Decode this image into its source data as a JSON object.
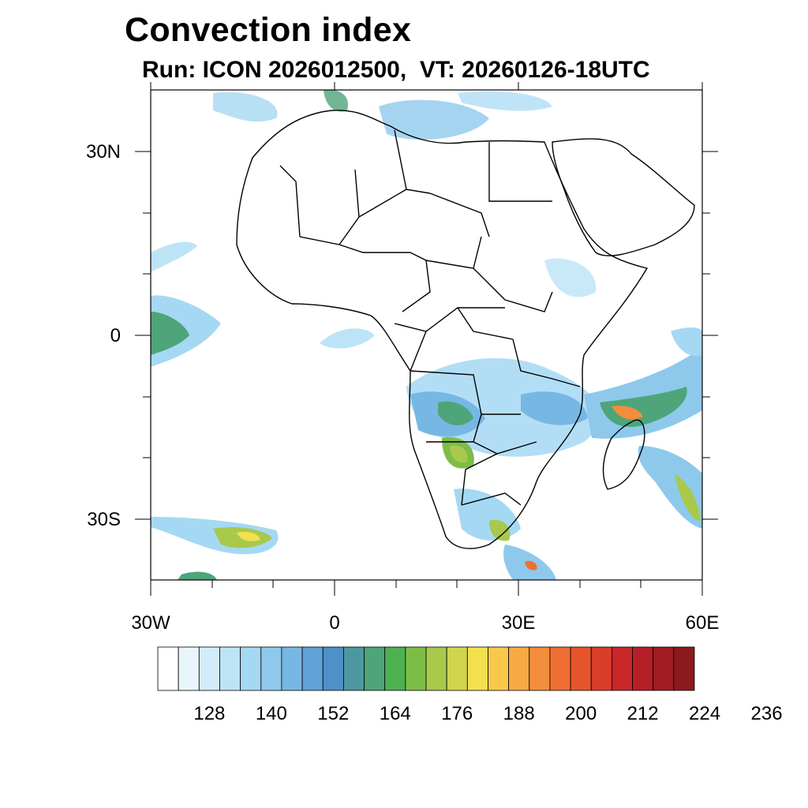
{
  "title": "Convection index",
  "subtitle": "Run: ICON 2026012500,  VT: 20260126-18UTC",
  "axes": {
    "lat_labels": [
      "30N",
      "0",
      "30S"
    ],
    "lon_labels": [
      "30W",
      "0",
      "30E",
      "60E"
    ]
  },
  "colorbar": {
    "tick_labels": [
      "128",
      "140",
      "152",
      "164",
      "176",
      "188",
      "200",
      "212",
      "224",
      "236"
    ],
    "colors": [
      "#ffffff",
      "#e9f5fc",
      "#d3ecf9",
      "#bde4f6",
      "#a5d8f3",
      "#8ec9ec",
      "#77b7e4",
      "#60a3d9",
      "#4e90c7",
      "#4d98a0",
      "#4ea579",
      "#4db152",
      "#7cbd48",
      "#a8c94c",
      "#d1d54d",
      "#f3e04e",
      "#f9c84b",
      "#f7aa43",
      "#f48d3c",
      "#ef6e33",
      "#e6542c",
      "#d93d2b",
      "#c9272a",
      "#b61f27",
      "#a01c22",
      "#8b1a1d"
    ]
  },
  "chart_data": {
    "type": "heatmap",
    "title": "Convection index",
    "subtitle": "Run: ICON 2026012500,  VT: 20260126-18UTC",
    "lon_range": [
      -30,
      60
    ],
    "lat_range": [
      -40,
      40
    ],
    "colorbar_ticks": [
      128,
      140,
      152,
      164,
      176,
      188,
      200,
      212,
      224,
      236
    ]
  }
}
